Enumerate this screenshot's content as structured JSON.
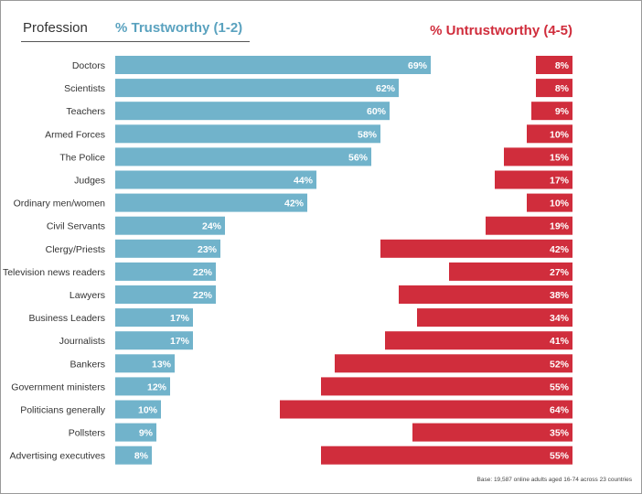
{
  "headers": {
    "profession": "Profession",
    "trustworthy": "% Trustworthy (1-2)",
    "untrustworthy": "% Untrustworthy (4-5)"
  },
  "colors": {
    "trustworthy": "#71b3cb",
    "untrustworthy": "#d02d3c",
    "trustworthy_header": "#5aa2bf",
    "untrustworthy_header": "#d02d3c"
  },
  "footnote": "Base: 19,587 online adults aged 16-74 across 23 countries",
  "chart_data": {
    "type": "bar",
    "orientation": "horizontal",
    "categories": [
      "Doctors",
      "Scientists",
      "Teachers",
      "Armed Forces",
      "The Police",
      "Judges",
      "Ordinary men/women",
      "Civil Servants",
      "Clergy/Priests",
      "Television news readers",
      "Lawyers",
      "Business Leaders",
      "Journalists",
      "Bankers",
      "Government ministers",
      "Politicians generally",
      "Pollsters",
      "Advertising executives"
    ],
    "series": [
      {
        "name": "% Trustworthy (1-2)",
        "direction": "left-anchored",
        "values": [
          69,
          62,
          60,
          58,
          56,
          44,
          42,
          24,
          23,
          22,
          22,
          17,
          17,
          13,
          12,
          10,
          9,
          8
        ]
      },
      {
        "name": "% Untrustworthy (4-5)",
        "direction": "right-anchored",
        "values": [
          8,
          8,
          9,
          10,
          15,
          17,
          10,
          19,
          42,
          27,
          38,
          34,
          41,
          52,
          55,
          64,
          35,
          55
        ]
      }
    ],
    "value_format": "percent"
  }
}
